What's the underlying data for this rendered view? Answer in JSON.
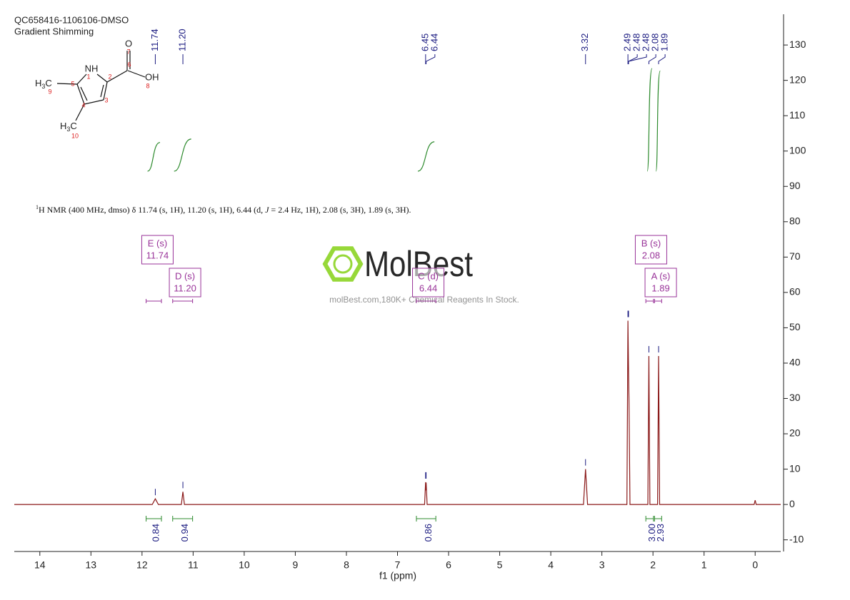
{
  "header": {
    "title": "QC658416-1106106-DMSO",
    "subtitle": "Gradient Shimming"
  },
  "molecule": {
    "atoms": {
      "o": "O",
      "oh": "OH",
      "nh": "NH"
    },
    "methyls": [
      {
        "h": "H",
        "sub": "3",
        "c": "C"
      },
      {
        "h": "H",
        "sub": "3",
        "c": "C"
      }
    ],
    "numbers": [
      "1",
      "2",
      "3",
      "4",
      "5",
      "6",
      "7",
      "8",
      "9",
      "10"
    ]
  },
  "description": {
    "sup": "1",
    "a": "H NMR (400 MHz, dmso) δ 11.74 (s, 1H), 11.20 (s, 1H), 6.44 (d, ",
    "j": "J",
    "b": " = 2.4 Hz, 1H), 2.08 (s, 3H), 1.89 (s, 3H)."
  },
  "watermark": {
    "brand": "MolBest",
    "caption": "molBest.com,180K+ Chemical Reagents In Stock."
  },
  "chart_data": {
    "type": "nmr",
    "x_label": "f1 (ppm)",
    "xlim": [
      14.5,
      -0.5
    ],
    "xticks": [
      14,
      13,
      12,
      11,
      10,
      9,
      8,
      7,
      6,
      5,
      4,
      3,
      2,
      1,
      0
    ],
    "ylim": [
      -13.3,
      138.7
    ],
    "yticks": [
      -10,
      0,
      10,
      20,
      30,
      40,
      50,
      60,
      70,
      80,
      90,
      100,
      110,
      120,
      130
    ],
    "spectrum": {
      "color": "#8b1a1a",
      "x": [
        14.5,
        11.8,
        11.74,
        11.68,
        11.23,
        11.2,
        11.17,
        6.47,
        6.45,
        6.445,
        6.44,
        6.42,
        3.36,
        3.32,
        3.28,
        2.51,
        2.49,
        2.48,
        2.47,
        2.45,
        2.1,
        2.08,
        2.06,
        1.91,
        1.89,
        1.87,
        0.02,
        0,
        -0.02,
        -0.5
      ],
      "values": [
        0,
        0,
        1.6,
        0,
        0,
        3.6,
        0,
        0,
        6.3,
        4,
        6.2,
        0,
        0,
        10,
        0,
        0,
        52,
        40,
        30,
        0,
        0,
        42,
        0,
        0,
        42,
        0,
        0,
        1.2,
        0,
        0
      ]
    },
    "peaks": {
      "color": "#1a1a80",
      "values": [
        11.74,
        11.2,
        6.45,
        6.44,
        3.32,
        2.49,
        2.48,
        2.48,
        2.08,
        1.89
      ],
      "value_labels": [
        "11.74",
        "11.20",
        "6.45",
        "6.44",
        "3.32",
        "2.49",
        "2.48",
        "2.48",
        "2.08",
        "1.89"
      ]
    },
    "integrals": {
      "color": "#2e8b2e",
      "values": [
        0.84,
        0.94,
        0.86,
        3,
        2.93
      ],
      "value_labels": [
        "0.84",
        "0.94",
        "0.86",
        "3.00",
        "2.93"
      ],
      "ranges": [
        [
          11.92,
          11.62
        ],
        [
          11.4,
          11.01
        ],
        [
          6.63,
          6.25
        ],
        [
          2.14,
          1.99
        ],
        [
          1.97,
          1.83
        ]
      ]
    },
    "multiplets": {
      "color": "#993399",
      "names": [
        "E (s)",
        "D (s)",
        "C (d)",
        "B (s)",
        "A (s)"
      ],
      "values": [
        11.74,
        11.2,
        6.44,
        2.08,
        1.89
      ],
      "value_labels": [
        "11.74",
        "11.20",
        "6.44",
        "2.08",
        "1.89"
      ]
    }
  }
}
